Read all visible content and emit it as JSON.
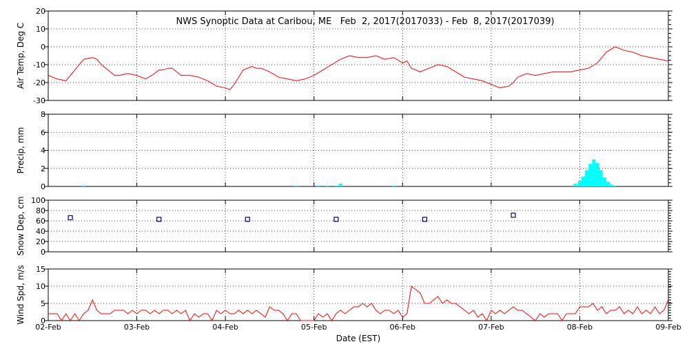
{
  "chart_data": {
    "type": "line",
    "title": "NWS Synoptic Data at Caribou, ME   Feb  2, 2017(2017033) - Feb  8, 2017(2017039)",
    "xlabel": "Date (EST)",
    "xlim": [
      0,
      7
    ],
    "x_ticks": [
      {
        "x": 0,
        "label": "02-Feb"
      },
      {
        "x": 1,
        "label": "03-Feb"
      },
      {
        "x": 2,
        "label": "04-Feb"
      },
      {
        "x": 3,
        "label": "05-Feb"
      },
      {
        "x": 4,
        "label": "06-Feb"
      },
      {
        "x": 5,
        "label": "07-Feb"
      },
      {
        "x": 6,
        "label": "08-Feb"
      },
      {
        "x": 7,
        "label": "09-Feb"
      }
    ],
    "colors": {
      "temp": "#ff0000",
      "precip": "#00ffff",
      "snow": "#000080",
      "wind": "#ff0000"
    },
    "panels": [
      {
        "id": "temp",
        "ylabel": "Air Temp, Deg C",
        "ylim": [
          -30,
          20
        ],
        "yticks": [
          -30,
          -20,
          -10,
          0,
          10,
          20
        ],
        "type": "line",
        "series": [
          {
            "x": [
              0,
              0.1,
              0.2,
              0.3,
              0.4,
              0.5,
              0.55,
              0.6,
              0.65,
              0.7,
              0.75,
              0.8,
              0.9,
              1.0,
              1.1,
              1.2,
              1.25,
              1.3,
              1.35,
              1.4,
              1.5,
              1.6,
              1.7,
              1.8,
              1.9,
              2.0,
              2.05,
              2.1,
              2.2,
              2.3,
              2.35,
              2.4,
              2.45,
              2.5,
              2.6,
              2.7,
              2.8,
              2.9,
              3.0,
              3.1,
              3.2,
              3.3,
              3.4,
              3.5,
              3.6,
              3.7,
              3.8,
              3.9,
              4.0,
              4.05,
              4.1,
              4.2,
              4.3,
              4.4,
              4.5,
              4.6,
              4.7,
              4.8,
              4.9,
              5.0,
              5.1,
              5.2,
              5.25,
              5.3,
              5.4,
              5.5,
              5.6,
              5.7,
              5.8,
              5.9,
              6.0,
              6.1,
              6.2,
              6.3,
              6.4,
              6.5,
              6.6,
              6.7,
              6.8,
              6.9,
              7.0
            ],
            "values": [
              -16,
              -18,
              -19,
              -13,
              -7,
              -6,
              -7,
              -10,
              -12,
              -14,
              -16,
              -16,
              -15,
              -16,
              -18,
              -15,
              -13,
              -13,
              -12,
              -12,
              -16,
              -16,
              -17,
              -19,
              -22,
              -23,
              -24,
              -21,
              -13,
              -11,
              -12,
              -12,
              -13,
              -14,
              -17,
              -18,
              -19,
              -18,
              -16,
              -13,
              -10,
              -7,
              -5,
              -6,
              -6,
              -5,
              -7,
              -6,
              -9,
              -8,
              -12,
              -14,
              -12,
              -10,
              -11,
              -14,
              -17,
              -18,
              -19,
              -21,
              -23,
              -22,
              -20,
              -17,
              -15,
              -16,
              -15,
              -14,
              -14,
              -14,
              -13,
              -12,
              -9,
              -3,
              0,
              -2,
              -3,
              -5,
              -6,
              -7,
              -8
            ]
          }
        ]
      },
      {
        "id": "precip",
        "ylabel": "Precip, mm",
        "ylim": [
          0,
          8
        ],
        "yticks": [
          0,
          2,
          4,
          6,
          8
        ],
        "type": "bar",
        "series": [
          {
            "x": [
              0.4,
              2.8,
              3.05,
              3.15,
              3.25,
              3.3,
              3.9,
              5.95,
              6.0,
              6.04,
              6.08,
              6.12,
              6.16,
              6.2,
              6.24,
              6.28,
              6.32,
              6.36,
              6.4
            ],
            "values": [
              0.1,
              0.1,
              0.1,
              0.1,
              0.1,
              0.3,
              0.1,
              0.3,
              0.6,
              1.1,
              1.8,
              2.5,
              3.0,
              2.6,
              1.8,
              1.0,
              0.5,
              0.2,
              0.1
            ]
          }
        ]
      },
      {
        "id": "snow",
        "ylabel": "Snow Dep, cm",
        "ylim": [
          0,
          100
        ],
        "yticks": [
          0,
          20,
          40,
          60,
          80,
          100
        ],
        "type": "scatter",
        "series": [
          {
            "x": [
              0.25,
              1.25,
              2.25,
              3.25,
              4.25,
              5.25
            ],
            "values": [
              66,
              63,
              63,
              63,
              63,
              71
            ]
          }
        ]
      },
      {
        "id": "wind",
        "ylabel": "Wind Spd, m/s",
        "ylim": [
          0,
          15
        ],
        "yticks": [
          0,
          5,
          10,
          15
        ],
        "type": "line",
        "series": [
          {
            "x": [
              0,
              0.05,
              0.1,
              0.15,
              0.2,
              0.25,
              0.3,
              0.35,
              0.4,
              0.45,
              0.5,
              0.55,
              0.6,
              0.65,
              0.7,
              0.75,
              0.8,
              0.85,
              0.9,
              0.95,
              1.0,
              1.05,
              1.1,
              1.15,
              1.2,
              1.25,
              1.3,
              1.35,
              1.4,
              1.45,
              1.5,
              1.55,
              1.6,
              1.65,
              1.7,
              1.75,
              1.8,
              1.85,
              1.9,
              1.95,
              2.0,
              2.05,
              2.1,
              2.15,
              2.2,
              2.25,
              2.3,
              2.35,
              2.4,
              2.45,
              2.5,
              2.55,
              2.6,
              2.65,
              2.7,
              2.75,
              2.8,
              2.85,
              2.9,
              2.95,
              3.0,
              3.05,
              3.1,
              3.15,
              3.2,
              3.25,
              3.3,
              3.35,
              3.4,
              3.45,
              3.5,
              3.55,
              3.6,
              3.65,
              3.7,
              3.75,
              3.8,
              3.85,
              3.9,
              3.95,
              4.0,
              4.05,
              4.1,
              4.15,
              4.2,
              4.25,
              4.3,
              4.35,
              4.4,
              4.45,
              4.5,
              4.55,
              4.6,
              4.65,
              4.7,
              4.75,
              4.8,
              4.85,
              4.9,
              4.95,
              5.0,
              5.05,
              5.1,
              5.15,
              5.2,
              5.25,
              5.3,
              5.35,
              5.4,
              5.45,
              5.5,
              5.55,
              5.6,
              5.65,
              5.7,
              5.75,
              5.8,
              5.85,
              5.9,
              5.95,
              6.0,
              6.05,
              6.1,
              6.15,
              6.2,
              6.25,
              6.3,
              6.35,
              6.4,
              6.45,
              6.5,
              6.55,
              6.6,
              6.65,
              6.7,
              6.75,
              6.8,
              6.85,
              6.9,
              6.95,
              7.0
            ],
            "values": [
              2,
              2,
              2,
              0,
              2,
              0,
              2,
              0,
              2,
              3,
              6,
              3,
              2,
              2,
              2,
              3,
              3,
              3,
              2,
              3,
              2,
              3,
              3,
              2,
              3,
              2,
              3,
              3,
              2,
              3,
              2,
              3,
              0,
              2,
              1,
              2,
              2,
              0,
              3,
              2,
              3,
              2,
              2,
              3,
              2,
              3,
              2,
              3,
              2,
              1,
              4,
              3,
              3,
              2,
              0,
              2,
              2,
              0,
              0,
              0,
              0,
              2,
              1,
              2,
              0,
              2,
              3,
              2,
              3,
              4,
              4,
              5,
              4,
              5,
              3,
              2,
              3,
              3,
              2,
              3,
              1,
              2,
              10,
              9,
              8,
              5,
              5,
              6,
              7,
              5,
              6,
              5,
              5,
              4,
              3,
              2,
              3,
              1,
              2,
              0,
              3,
              2,
              3,
              2,
              3,
              4,
              3,
              3,
              2,
              1,
              0,
              2,
              1,
              2,
              2,
              2,
              0,
              2,
              2,
              2,
              4,
              4,
              4,
              5,
              3,
              4,
              2,
              3,
              3,
              4,
              2,
              3,
              2,
              4,
              2,
              3,
              2,
              4,
              2,
              3,
              6
            ]
          }
        ]
      }
    ]
  }
}
